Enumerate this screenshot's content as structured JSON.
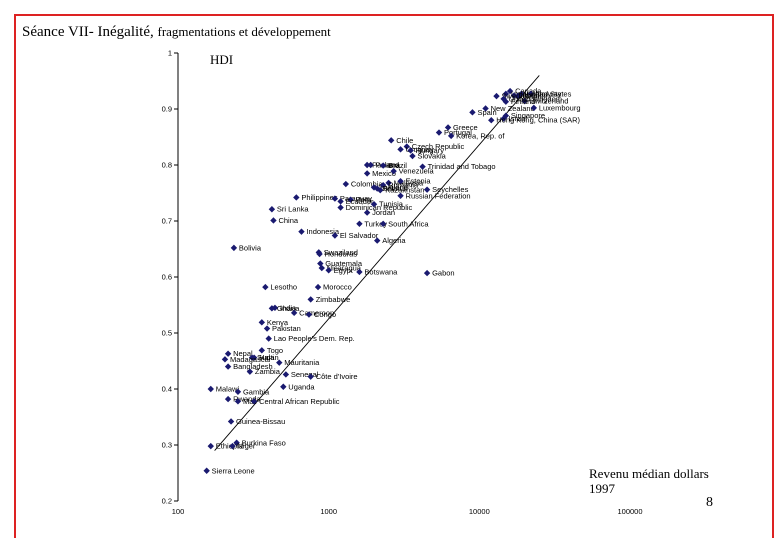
{
  "slide": {
    "title_main": "Séance VII- Inégalité, ",
    "title_rest": "fragmentations et développement",
    "page_number": "8"
  },
  "chart_data": {
    "type": "scatter",
    "title": "HDI",
    "ylabel": "HDI",
    "xlabel_line1": "Revenu médian dollars",
    "xlabel_line2": "1997",
    "xscale": "log",
    "xlim": [
      100,
      100000
    ],
    "ylim": [
      0.2,
      1
    ],
    "x_ticks": [
      {
        "value": 100,
        "label": "100"
      },
      {
        "value": 1000,
        "label": "1000"
      },
      {
        "value": 10000,
        "label": "10000"
      },
      {
        "value": 100000,
        "label": "100000"
      }
    ],
    "y_ticks": [
      {
        "value": 0.2,
        "label": "0.2"
      },
      {
        "value": 0.3,
        "label": "0.3"
      },
      {
        "value": 0.4,
        "label": "0.4"
      },
      {
        "value": 0.5,
        "label": "0.5"
      },
      {
        "value": 0.6,
        "label": "0.6"
      },
      {
        "value": 0.7,
        "label": "0.7"
      },
      {
        "value": 0.8,
        "label": "0.8"
      },
      {
        "value": 0.9,
        "label": "0.9"
      },
      {
        "value": 1,
        "label": "1"
      }
    ],
    "trendline": {
      "x": [
        175,
        25000
      ],
      "y": [
        0.29,
        0.96
      ]
    },
    "points": [
      {
        "label": "Canada",
        "x": 16000,
        "y": 0.932
      },
      {
        "label": "United States",
        "x": 19000,
        "y": 0.927
      },
      {
        "label": "Norway",
        "x": 22000,
        "y": 0.927
      },
      {
        "label": "Iceland",
        "x": 15000,
        "y": 0.927
      },
      {
        "label": "Japan",
        "x": 17000,
        "y": 0.924
      },
      {
        "label": "Belgium",
        "x": 18000,
        "y": 0.923
      },
      {
        "label": "Sweden",
        "x": 13000,
        "y": 0.923
      },
      {
        "label": "Switzerland",
        "x": 20000,
        "y": 0.914
      },
      {
        "label": "United Kingdom",
        "x": 14500,
        "y": 0.918
      },
      {
        "label": "Finland",
        "x": 15000,
        "y": 0.913
      },
      {
        "label": "New Zealand",
        "x": 11000,
        "y": 0.901
      },
      {
        "label": "Luxembourg",
        "x": 23000,
        "y": 0.902
      },
      {
        "label": "Israel",
        "x": 14500,
        "y": 0.883
      },
      {
        "label": "Spain",
        "x": 9000,
        "y": 0.894
      },
      {
        "label": "Singapore",
        "x": 15000,
        "y": 0.888
      },
      {
        "label": "Hong Kong, China (SAR)",
        "x": 12000,
        "y": 0.88
      },
      {
        "label": "Greece",
        "x": 6200,
        "y": 0.867
      },
      {
        "label": "Portugal",
        "x": 5400,
        "y": 0.858
      },
      {
        "label": "Korea, Rep. of",
        "x": 6500,
        "y": 0.852
      },
      {
        "label": "Chile",
        "x": 2600,
        "y": 0.844
      },
      {
        "label": "Czech Republic",
        "x": 3300,
        "y": 0.833
      },
      {
        "label": "Uruguay",
        "x": 3000,
        "y": 0.828
      },
      {
        "label": "Hungary",
        "x": 3500,
        "y": 0.826
      },
      {
        "label": "Slovakia",
        "x": 3600,
        "y": 0.816
      },
      {
        "label": "Panama",
        "x": 1800,
        "y": 0.8
      },
      {
        "label": "Poland",
        "x": 1900,
        "y": 0.8
      },
      {
        "label": "Brazil",
        "x": 2300,
        "y": 0.799
      },
      {
        "label": "Trinidad and Tobago",
        "x": 4200,
        "y": 0.797
      },
      {
        "label": "Mexico",
        "x": 1800,
        "y": 0.785
      },
      {
        "label": "Venezuela",
        "x": 2700,
        "y": 0.789
      },
      {
        "label": "Colombia",
        "x": 1300,
        "y": 0.766
      },
      {
        "label": "Thailand",
        "x": 2000,
        "y": 0.76
      },
      {
        "label": "Malaysia",
        "x": 2500,
        "y": 0.768
      },
      {
        "label": "Estonia",
        "x": 3000,
        "y": 0.771
      },
      {
        "label": "Romania",
        "x": 2300,
        "y": 0.764
      },
      {
        "label": "Kazakhstan",
        "x": 2200,
        "y": 0.755
      },
      {
        "label": "Belarus",
        "x": 2100,
        "y": 0.758
      },
      {
        "label": "Seychelles",
        "x": 4500,
        "y": 0.756
      },
      {
        "label": "Philippines",
        "x": 610,
        "y": 0.742
      },
      {
        "label": "Paraguay",
        "x": 1100,
        "y": 0.74
      },
      {
        "label": "Peru",
        "x": 1400,
        "y": 0.738
      },
      {
        "label": "Russian Federation",
        "x": 3000,
        "y": 0.745
      },
      {
        "label": "Ecuador",
        "x": 1200,
        "y": 0.735
      },
      {
        "label": "Sri Lanka",
        "x": 420,
        "y": 0.721
      },
      {
        "label": "Dominican Republic",
        "x": 1200,
        "y": 0.724
      },
      {
        "label": "Tunisia",
        "x": 2000,
        "y": 0.73
      },
      {
        "label": "Jordan",
        "x": 1800,
        "y": 0.715
      },
      {
        "label": "China",
        "x": 430,
        "y": 0.701
      },
      {
        "label": "Turkey",
        "x": 1600,
        "y": 0.695
      },
      {
        "label": "South Africa",
        "x": 2300,
        "y": 0.695
      },
      {
        "label": "Indonesia",
        "x": 660,
        "y": 0.681
      },
      {
        "label": "El Salvador",
        "x": 1100,
        "y": 0.674
      },
      {
        "label": "Algeria",
        "x": 2100,
        "y": 0.665
      },
      {
        "label": "Bolivia",
        "x": 235,
        "y": 0.652
      },
      {
        "label": "Swaziland",
        "x": 860,
        "y": 0.644
      },
      {
        "label": "Honduras",
        "x": 870,
        "y": 0.641
      },
      {
        "label": "Guatemala",
        "x": 880,
        "y": 0.624
      },
      {
        "label": "Nicaragua",
        "x": 900,
        "y": 0.616
      },
      {
        "label": "Egypt",
        "x": 1000,
        "y": 0.612
      },
      {
        "label": "Botswana",
        "x": 1600,
        "y": 0.609
      },
      {
        "label": "Gabon",
        "x": 4500,
        "y": 0.607
      },
      {
        "label": "Lesotho",
        "x": 380,
        "y": 0.582
      },
      {
        "label": "Morocco",
        "x": 850,
        "y": 0.582
      },
      {
        "label": "Zimbabwe",
        "x": 760,
        "y": 0.56
      },
      {
        "label": "Ghana",
        "x": 420,
        "y": 0.544
      },
      {
        "label": "India",
        "x": 440,
        "y": 0.545
      },
      {
        "label": "Cameroon",
        "x": 590,
        "y": 0.536
      },
      {
        "label": "Congo",
        "x": 740,
        "y": 0.533
      },
      {
        "label": "Kenya",
        "x": 360,
        "y": 0.519
      },
      {
        "label": "Pakistan",
        "x": 390,
        "y": 0.508
      },
      {
        "label": "Lao People's Dem. Rep.",
        "x": 400,
        "y": 0.49
      },
      {
        "label": "Togo",
        "x": 360,
        "y": 0.469
      },
      {
        "label": "Nepal",
        "x": 215,
        "y": 0.463
      },
      {
        "label": "Sudan",
        "x": 310,
        "y": 0.456
      },
      {
        "label": "Haiti",
        "x": 320,
        "y": 0.456
      },
      {
        "label": "Madagascar",
        "x": 205,
        "y": 0.453
      },
      {
        "label": "Mauritania",
        "x": 470,
        "y": 0.447
      },
      {
        "label": "Bangladesh",
        "x": 215,
        "y": 0.44
      },
      {
        "label": "Zambia",
        "x": 300,
        "y": 0.431
      },
      {
        "label": "Senegal",
        "x": 520,
        "y": 0.426
      },
      {
        "label": "Côte d'Ivoire",
        "x": 760,
        "y": 0.422
      },
      {
        "label": "Uganda",
        "x": 500,
        "y": 0.404
      },
      {
        "label": "Malawi",
        "x": 165,
        "y": 0.4
      },
      {
        "label": "Gambia",
        "x": 250,
        "y": 0.395
      },
      {
        "label": "Rwanda",
        "x": 215,
        "y": 0.382
      },
      {
        "label": "Mali",
        "x": 250,
        "y": 0.378
      },
      {
        "label": "Central African Republic",
        "x": 320,
        "y": 0.378
      },
      {
        "label": "Guinea-Bissau",
        "x": 225,
        "y": 0.342
      },
      {
        "label": "Burkina Faso",
        "x": 245,
        "y": 0.304
      },
      {
        "label": "Ethiopia",
        "x": 165,
        "y": 0.298
      },
      {
        "label": "Niger",
        "x": 230,
        "y": 0.298
      },
      {
        "label": "Sierra Leone",
        "x": 155,
        "y": 0.254
      }
    ]
  }
}
